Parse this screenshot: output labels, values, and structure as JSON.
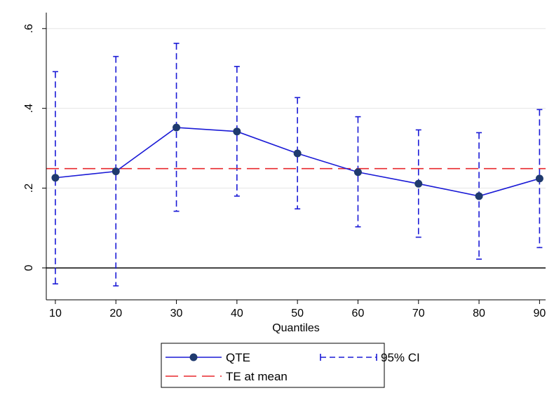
{
  "chart_data": {
    "type": "line",
    "x": [
      10,
      20,
      30,
      40,
      50,
      60,
      70,
      80,
      90
    ],
    "xlabel": "Quantiles",
    "ylabel": "",
    "xlim": [
      8.5,
      91
    ],
    "ylim": [
      -0.08,
      0.64
    ],
    "xticks": [
      10,
      20,
      30,
      40,
      50,
      60,
      70,
      80,
      90
    ],
    "xtick_labels": [
      "10",
      "20",
      "30",
      "40",
      "50",
      "60",
      "70",
      "80",
      "90"
    ],
    "yticks": [
      0,
      0.2,
      0.4,
      0.6
    ],
    "ytick_labels": [
      "0",
      ".2",
      ".4",
      ".6"
    ],
    "grid": true,
    "series": [
      {
        "name": "QTE",
        "kind": "line-marker",
        "color": "#1a1ad6",
        "marker_color": "#1f3a6e",
        "values": [
          0.226,
          0.242,
          0.352,
          0.342,
          0.287,
          0.24,
          0.211,
          0.18,
          0.224
        ]
      },
      {
        "name": "95% CI",
        "kind": "errorbar",
        "color": "#1a1ad6",
        "lower": [
          -0.04,
          -0.045,
          0.142,
          0.18,
          0.148,
          0.103,
          0.077,
          0.022,
          0.051
        ],
        "upper": [
          0.492,
          0.53,
          0.563,
          0.505,
          0.427,
          0.379,
          0.346,
          0.339,
          0.397
        ]
      },
      {
        "name": "TE at mean",
        "kind": "hline",
        "color": "#e8282d",
        "value": 0.249
      }
    ],
    "reference_line": {
      "value": 0,
      "color": "#000000"
    },
    "legend_position": "bottom-center",
    "legend": [
      "QTE",
      "95% CI",
      "TE at mean"
    ]
  }
}
